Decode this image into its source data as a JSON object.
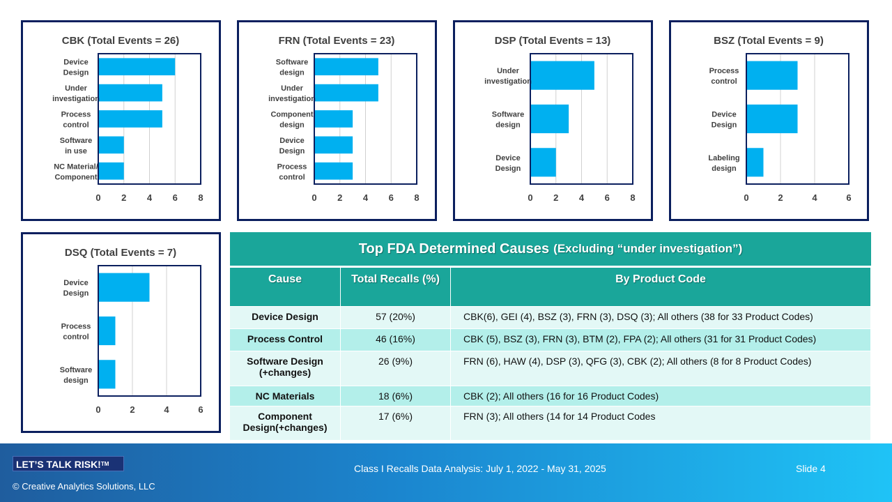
{
  "colors": {
    "bar": "#00b0f0",
    "frame": "#0b1f5e",
    "table_header": "#1aa69a",
    "row_light": "#e3f8f6",
    "row_dark": "#b3efea"
  },
  "chart_data": [
    {
      "type": "bar",
      "orientation": "horizontal",
      "title": "CBK (Total Events = 26)",
      "categories": [
        [
          "Device",
          "Design"
        ],
        [
          "Under",
          "investigation"
        ],
        [
          "Process",
          "control"
        ],
        [
          "Software",
          "in use"
        ],
        [
          "NC Material/",
          "Component"
        ]
      ],
      "values": [
        6,
        5,
        5,
        2,
        2
      ],
      "xlim": [
        0,
        8
      ],
      "ticks": [
        0,
        2,
        4,
        6,
        8
      ],
      "grid": true
    },
    {
      "type": "bar",
      "orientation": "horizontal",
      "title": "FRN (Total Events = 23)",
      "categories": [
        [
          "Software",
          "design"
        ],
        [
          "Under",
          "investigation"
        ],
        [
          "Component",
          "design"
        ],
        [
          "Device",
          "Design"
        ],
        [
          "Process",
          "control"
        ]
      ],
      "values": [
        5,
        5,
        3,
        3,
        3
      ],
      "xlim": [
        0,
        8
      ],
      "ticks": [
        0,
        2,
        4,
        6,
        8
      ],
      "grid": true
    },
    {
      "type": "bar",
      "orientation": "horizontal",
      "title": "DSP (Total Events = 13)",
      "categories": [
        [
          "Under",
          "investigation"
        ],
        [
          "Software",
          "design"
        ],
        [
          "Device",
          "Design"
        ]
      ],
      "values": [
        5,
        3,
        2
      ],
      "xlim": [
        0,
        8
      ],
      "ticks": [
        0,
        2,
        4,
        6,
        8
      ],
      "grid": true
    },
    {
      "type": "bar",
      "orientation": "horizontal",
      "title": "BSZ (Total Events = 9)",
      "categories": [
        [
          "Process",
          "control"
        ],
        [
          "Device",
          "Design"
        ],
        [
          "Labeling",
          "design"
        ]
      ],
      "values": [
        3,
        3,
        1
      ],
      "xlim": [
        0,
        6
      ],
      "ticks": [
        0,
        2,
        4,
        6
      ],
      "grid": true
    },
    {
      "type": "bar",
      "orientation": "horizontal",
      "title": "DSQ (Total Events = 7)",
      "categories": [
        [
          "Device",
          "Design"
        ],
        [
          "Process",
          "control"
        ],
        [
          "Software",
          "design"
        ]
      ],
      "values": [
        3,
        1,
        1
      ],
      "xlim": [
        0,
        6
      ],
      "ticks": [
        0,
        2,
        4,
        6
      ],
      "grid": true
    }
  ],
  "table": {
    "title": "Top FDA Determined Causes",
    "subtitle": "(Excluding “under investigation”)",
    "headers": [
      "Cause",
      "Total Recalls (%)",
      "By Product Code"
    ],
    "rows": [
      {
        "cause": "Device Design",
        "total": "57 (20%)",
        "products": "CBK(6), GEI (4), BSZ (3), FRN (3), DSQ (3); All others (38 for 33 Product Codes)"
      },
      {
        "cause": "Process Control",
        "total": "46 (16%)",
        "products": "CBK (5), BSZ (3), FRN (3), BTM (2), FPA (2); All others (31 for 31 Product Codes)"
      },
      {
        "cause": "Software Design (+changes)",
        "total": "26 (9%)",
        "products": "FRN (6), HAW (4), DSP (3), QFG (3), CBK (2); All others (8 for 8 Product Codes)"
      },
      {
        "cause": "NC Materials",
        "total": "18 (6%)",
        "products": "CBK (2); All others (16 for 16 Product Codes)"
      },
      {
        "cause": "Component Design(+changes)",
        "total": "17 (6%)",
        "products": "FRN (3); All others (14 for 14 Product Codes"
      }
    ]
  },
  "footer": {
    "logo": "LET’S TALK RISK!",
    "trademark": "TM",
    "copyright": "© Creative Analytics Solutions, LLC",
    "title": "Class I Recalls Data Analysis: July 1, 2022 - May 31, 2025",
    "slide": "Slide 4"
  }
}
